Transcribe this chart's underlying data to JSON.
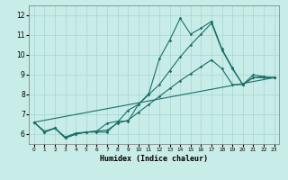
{
  "xlabel": "Humidex (Indice chaleur)",
  "bg_color": "#c8ece8",
  "grid_color": "#a8d4d0",
  "line_color": "#1a7068",
  "xlim_min": -0.5,
  "xlim_max": 23.5,
  "ylim_min": 5.5,
  "ylim_max": 12.5,
  "yticks": [
    6,
    7,
    8,
    9,
    10,
    11,
    12
  ],
  "xticks": [
    0,
    1,
    2,
    3,
    4,
    5,
    6,
    7,
    8,
    9,
    10,
    11,
    12,
    13,
    14,
    15,
    16,
    17,
    18,
    19,
    20,
    21,
    22,
    23
  ],
  "line1_x": [
    0,
    1,
    2,
    3,
    4,
    5,
    6,
    7,
    8,
    9,
    10,
    11,
    12,
    13,
    14,
    15,
    16,
    17,
    18,
    19,
    20,
    21,
    22,
    23
  ],
  "line1_y": [
    6.6,
    6.1,
    6.3,
    5.8,
    6.0,
    6.1,
    6.1,
    6.1,
    6.6,
    7.2,
    7.5,
    8.05,
    9.8,
    10.75,
    11.85,
    11.05,
    11.35,
    11.7,
    10.3,
    9.35,
    8.5,
    9.0,
    8.9,
    8.85
  ],
  "line2_x": [
    0,
    1,
    2,
    3,
    4,
    5,
    6,
    7,
    8,
    9,
    10,
    11,
    12,
    13,
    14,
    15,
    16,
    17,
    18,
    19,
    20,
    21,
    22,
    23
  ],
  "line2_y": [
    6.6,
    6.1,
    6.3,
    5.8,
    6.0,
    6.1,
    6.15,
    6.55,
    6.65,
    6.65,
    7.5,
    8.0,
    8.5,
    9.2,
    9.9,
    10.5,
    11.05,
    11.6,
    10.25,
    9.3,
    8.5,
    8.85,
    8.85,
    8.85
  ],
  "line3_x": [
    0,
    1,
    2,
    3,
    4,
    5,
    6,
    7,
    8,
    9,
    10,
    11,
    12,
    13,
    14,
    15,
    16,
    17,
    18,
    19,
    20,
    21,
    22,
    23
  ],
  "line3_y": [
    6.6,
    6.15,
    6.3,
    5.85,
    6.05,
    6.1,
    6.15,
    6.2,
    6.55,
    6.7,
    7.1,
    7.5,
    7.9,
    8.3,
    8.7,
    9.05,
    9.4,
    9.75,
    9.3,
    8.5,
    8.5,
    8.85,
    8.9,
    8.85
  ],
  "line4_x": [
    0,
    23
  ],
  "line4_y": [
    6.6,
    8.85
  ]
}
